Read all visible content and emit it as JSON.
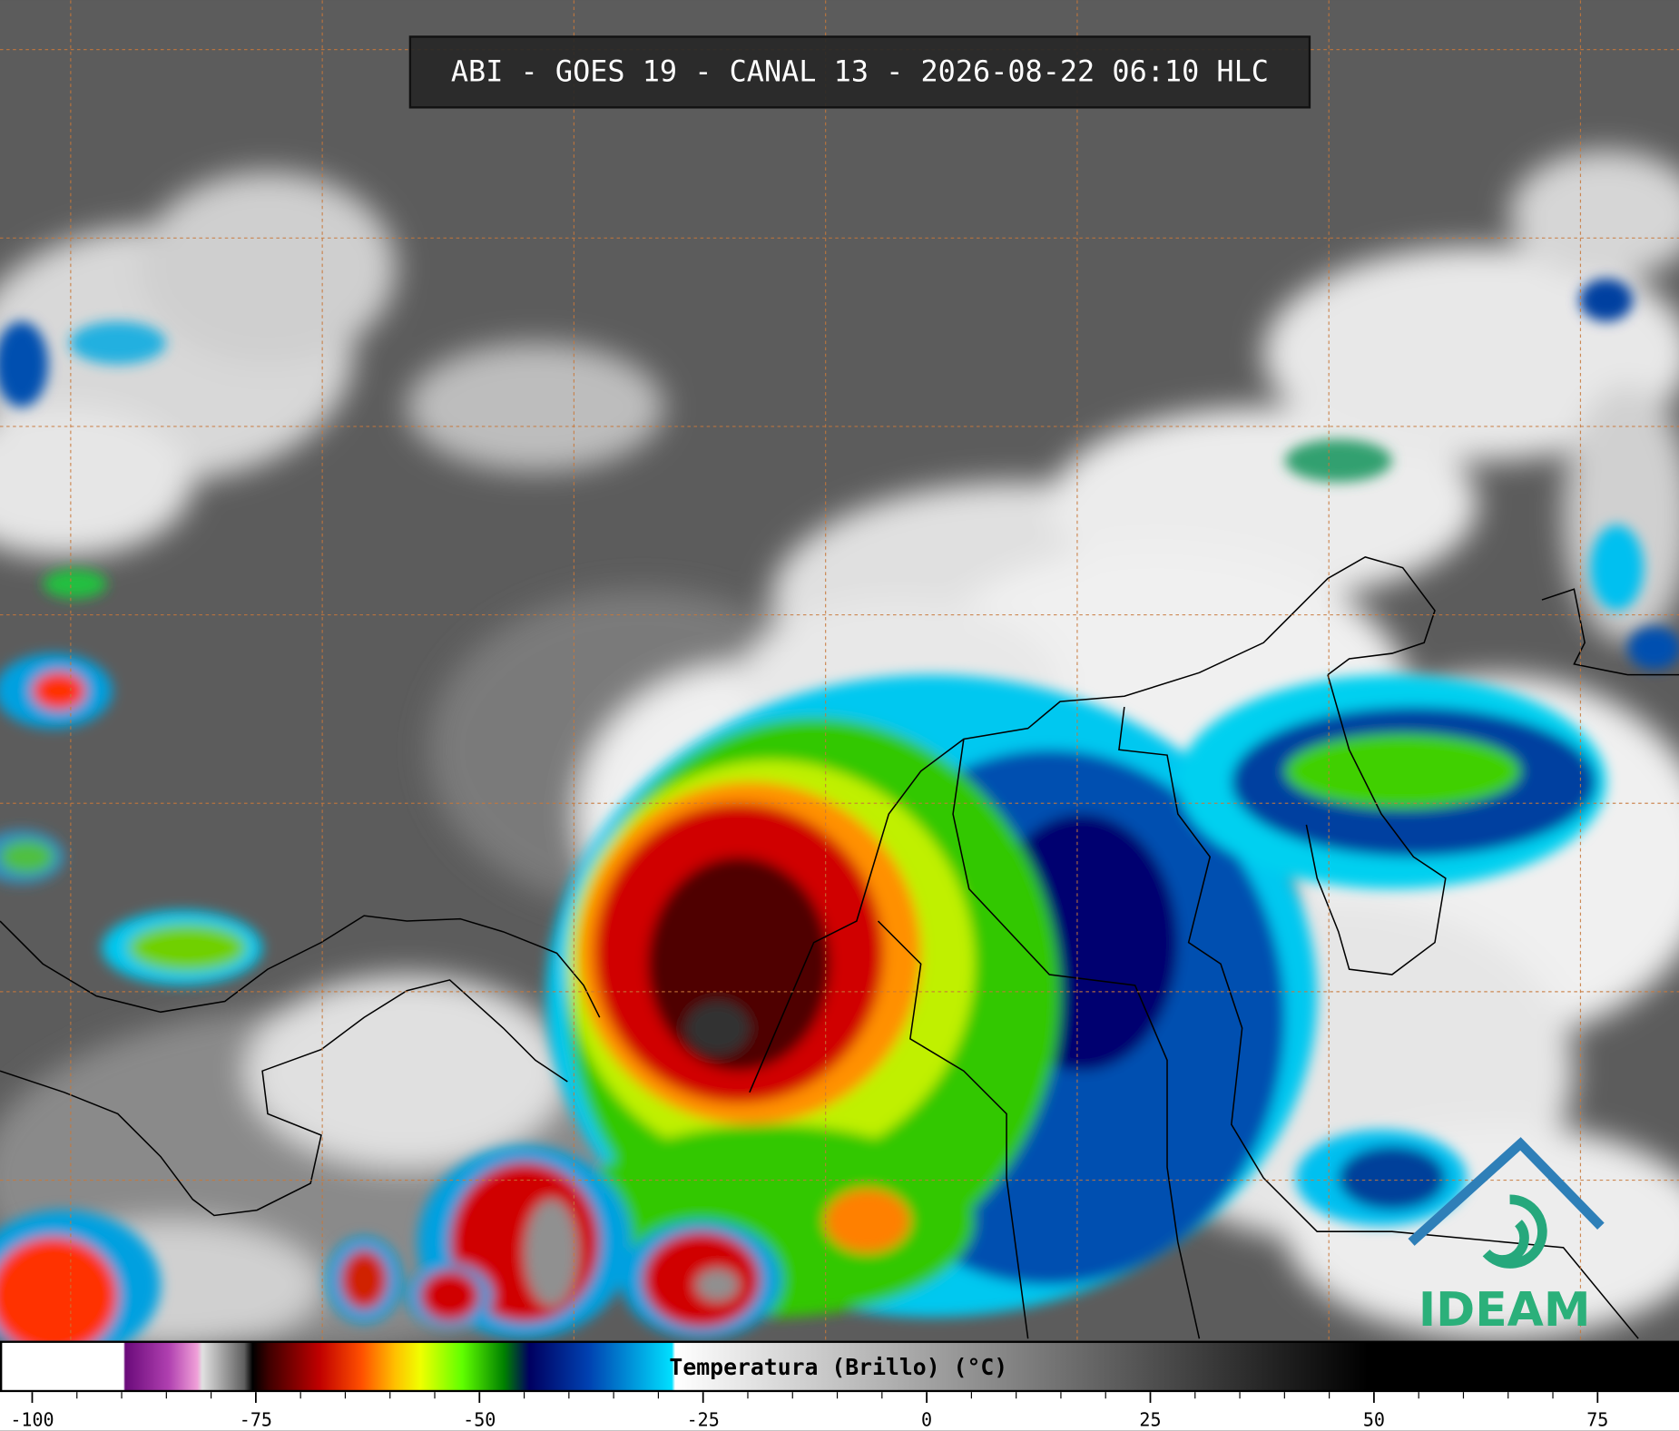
{
  "title": "ABI - GOES 19 - CANAL 13 - 2026-08-22 06:10 HLC",
  "colorbar": {
    "label": "Temperatura (Brillo) (°C)",
    "range": [
      -103.6,
      84.1
    ],
    "ticks": [
      -100,
      -75,
      -50,
      -25,
      0,
      25,
      50,
      75
    ]
  },
  "logo": "IDEAM"
}
